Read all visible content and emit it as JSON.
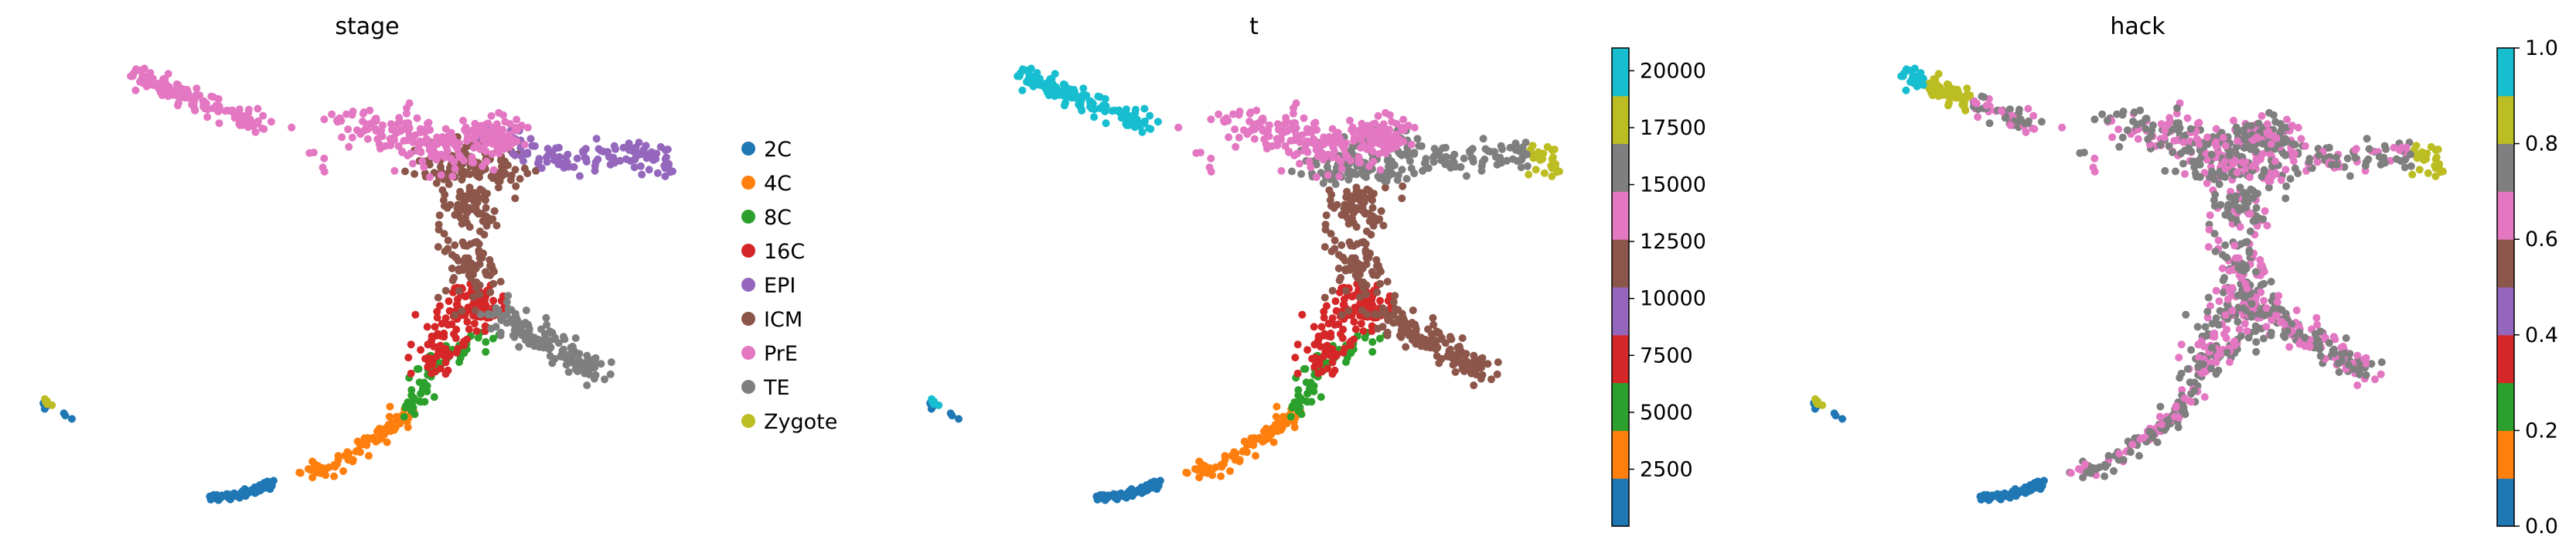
{
  "figure": {
    "panels": [
      {
        "title": "stage",
        "legend": {
          "entries": [
            {
              "label": "2C",
              "color": "#1f77b4"
            },
            {
              "label": "4C",
              "color": "#ff7f0e"
            },
            {
              "label": "8C",
              "color": "#2ca02c"
            },
            {
              "label": "16C",
              "color": "#d62728"
            },
            {
              "label": "EPI",
              "color": "#9467bd"
            },
            {
              "label": "ICM",
              "color": "#8c564b"
            },
            {
              "label": "PrE",
              "color": "#e377c2"
            },
            {
              "label": "TE",
              "color": "#7f7f7f"
            },
            {
              "label": "Zygote",
              "color": "#bcbd22"
            }
          ]
        }
      },
      {
        "title": "t",
        "colorbar": {
          "ticks": [
            "2500",
            "5000",
            "7500",
            "10000",
            "12500",
            "15000",
            "17500",
            "20000"
          ],
          "colors": [
            "#1f77b4",
            "#ff7f0e",
            "#2ca02c",
            "#d62728",
            "#9467bd",
            "#8c564b",
            "#e377c2",
            "#7f7f7f",
            "#bcbd22",
            "#17becf"
          ]
        }
      },
      {
        "title": "hack",
        "colorbar": {
          "ticks": [
            "0.0",
            "0.2",
            "0.4",
            "0.6",
            "0.8",
            "1.0"
          ],
          "colors": [
            "#1f77b4",
            "#ff7f0e",
            "#2ca02c",
            "#d62728",
            "#9467bd",
            "#8c564b",
            "#e377c2",
            "#7f7f7f",
            "#bcbd22",
            "#17becf"
          ]
        }
      }
    ]
  },
  "chart_data": [
    {
      "type": "scatter",
      "title": "stage",
      "xlabel": "",
      "ylabel": "",
      "grid": false,
      "axes_visible": false,
      "legend_position": "right",
      "series": [
        {
          "name": "2C",
          "color": "#1f77b4"
        },
        {
          "name": "4C",
          "color": "#ff7f0e"
        },
        {
          "name": "8C",
          "color": "#2ca02c"
        },
        {
          "name": "16C",
          "color": "#d62728"
        },
        {
          "name": "EPI",
          "color": "#9467bd"
        },
        {
          "name": "ICM",
          "color": "#8c564b"
        },
        {
          "name": "PrE",
          "color": "#e377c2"
        },
        {
          "name": "TE",
          "color": "#7f7f7f"
        },
        {
          "name": "Zygote",
          "color": "#bcbd22"
        }
      ]
    },
    {
      "type": "scatter",
      "title": "t",
      "xlabel": "",
      "ylabel": "",
      "grid": false,
      "axes_visible": false,
      "colorbar": {
        "range": [
          0,
          21000
        ],
        "ticks": [
          2500,
          5000,
          7500,
          10000,
          12500,
          15000,
          17500,
          20000
        ],
        "bins": 10
      }
    },
    {
      "type": "scatter",
      "title": "hack",
      "xlabel": "",
      "ylabel": "",
      "grid": false,
      "axes_visible": false,
      "colorbar": {
        "range": [
          0,
          1
        ],
        "ticks": [
          0.0,
          0.2,
          0.4,
          0.6,
          0.8,
          1.0
        ],
        "bins": 10
      }
    }
  ]
}
